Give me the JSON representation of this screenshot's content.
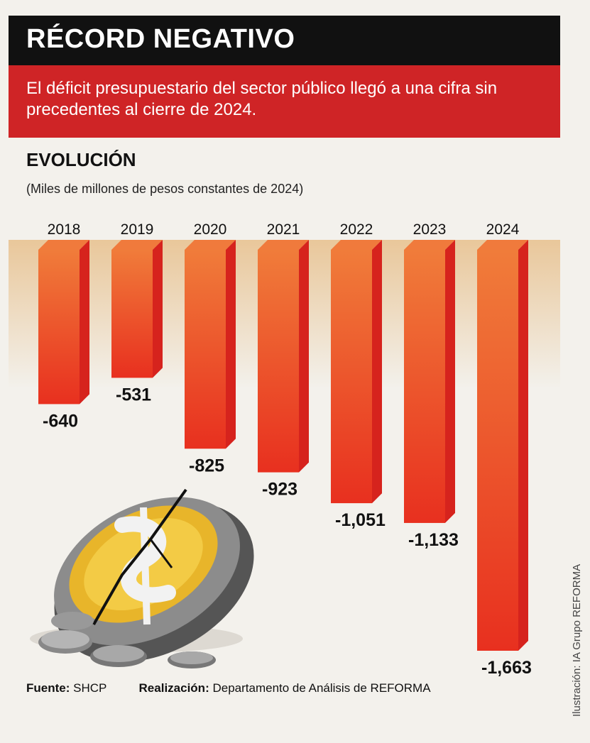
{
  "header": {
    "title": "RÉCORD NEGATIVO",
    "subtitle": "El déficit presupuestario del sector público llegó a una cifra sin precedentes al cierre de 2024."
  },
  "section_title": "EVOLUCIÓN",
  "units_note": "(Miles de millones de pesos constantes de 2024)",
  "footer": {
    "source_label": "Fuente:",
    "source_value": "SHCP",
    "credit_label": "Realización:",
    "credit_value": "Departamento de Análisis de REFORMA"
  },
  "illustration_credit": "Ilustración: IA Grupo REFORMA",
  "colors": {
    "title_bg": "#111111",
    "subtitle_bg": "#cf2426",
    "bar_front": "#ec5a2a",
    "bar_side": "#d6231d",
    "bar_top": "#f07a3c",
    "band": "#e9c79a"
  },
  "chart_data": {
    "type": "bar",
    "title": "EVOLUCIÓN",
    "ylabel": "(Miles de millones de pesos constantes de 2024)",
    "categories": [
      "2018",
      "2019",
      "2020",
      "2021",
      "2022",
      "2023",
      "2024"
    ],
    "values": [
      -640,
      -531,
      -825,
      -923,
      -1051,
      -1133,
      -1663
    ],
    "value_labels": [
      "-640",
      "-531",
      "-825",
      "-923",
      "-1,051",
      "-1,133",
      "-1,663"
    ],
    "ylim": [
      -1663,
      0
    ],
    "grid": false,
    "legend": "none"
  }
}
